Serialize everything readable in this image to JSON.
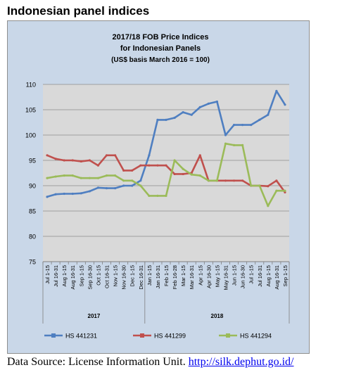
{
  "page_heading": "Indonesian panel indices",
  "source": {
    "prefix": "Data Source: License Information Unit.",
    "link": "http://silk.dephut.go.id/"
  },
  "colors": {
    "hs441231": "#4f7fc1",
    "hs441299": "#c0504d",
    "hs441294": "#9bbb59",
    "plot_bg": "#d9d9d9",
    "panel_bg": "#c9d7e8"
  },
  "chart_data": {
    "type": "line",
    "title": [
      "2017/18 FOB Price Indices",
      "for Indonesian Panels",
      "(US$ basis March 2016 = 100)"
    ],
    "xlabel": "",
    "ylabel": "",
    "ylim": [
      75,
      110
    ],
    "yticks": [
      75,
      80,
      85,
      90,
      95,
      100,
      105,
      110
    ],
    "ytick_labels": [
      "75",
      "80",
      "85",
      "90",
      "95",
      "100",
      "105",
      "110"
    ],
    "grid": true,
    "legend_position": "bottom",
    "categories": [
      "Jul 1-15",
      "Jul 16-31",
      "Aug 1-15",
      "Aug 16-31",
      "Sep 1-15",
      "Sep 16-30",
      "Oct 1-15",
      "Oct 16-31",
      "Nov 1-15",
      "Nov 16-30",
      "Dec 1-15",
      "Dec 16-31",
      "Jan 1-15",
      "Jan 16-31",
      "Feb 1-15",
      "Feb 16-28",
      "Mar 1-15",
      "Mar 16-31",
      "Apr 1-15",
      "Apr 16-30",
      "May 1-15",
      "May 16-31",
      "Jun 1-15",
      "Jun 16-30",
      "Jul 1-15",
      "Jul 16-31",
      "Aug 1-15",
      "Aug 16-31",
      "Sep 1-15"
    ],
    "groups": [
      {
        "label": "2017",
        "start": 0,
        "end": 11
      },
      {
        "label": "2018",
        "start": 12,
        "end": 28
      }
    ],
    "series": [
      {
        "name": "HS 441231",
        "color": "#4f7fc1",
        "values": [
          87.8,
          88.3,
          88.4,
          88.4,
          88.5,
          88.9,
          89.6,
          89.5,
          89.5,
          90,
          90,
          91,
          96,
          103,
          103,
          103.4,
          104.5,
          104,
          105.5,
          106.2,
          106.6,
          100,
          102,
          102,
          102,
          103,
          104,
          108.7,
          106
        ]
      },
      {
        "name": "HS 441299",
        "color": "#c0504d",
        "values": [
          96,
          95.3,
          95,
          95,
          94.8,
          95,
          94,
          96,
          96,
          93,
          93,
          94,
          94,
          94,
          94,
          92.3,
          92.3,
          92.5,
          96,
          91,
          91,
          91,
          91,
          91,
          90,
          90,
          89.9,
          91,
          88.7
        ]
      },
      {
        "name": "HS 441294",
        "color": "#9bbb59",
        "values": [
          91.5,
          91.8,
          92,
          92,
          91.5,
          91.5,
          91.5,
          92,
          92,
          91,
          91,
          90,
          88,
          88,
          88,
          95,
          93.3,
          92.2,
          92,
          91,
          91,
          98.3,
          98,
          98,
          90,
          90,
          86,
          89,
          89
        ]
      }
    ]
  }
}
